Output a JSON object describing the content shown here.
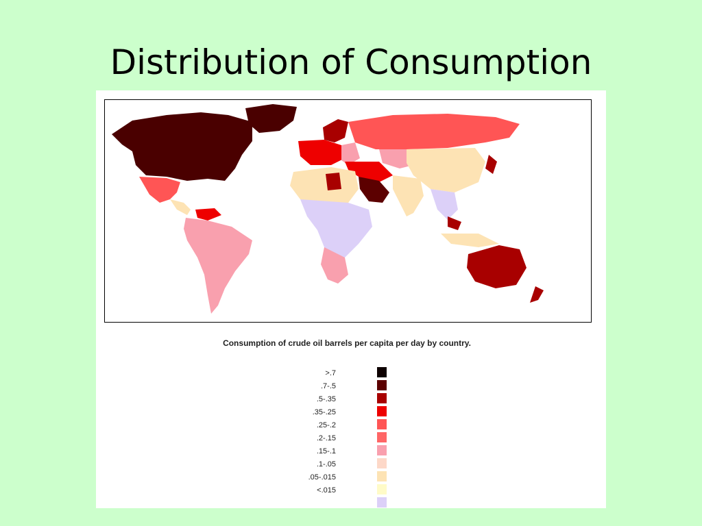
{
  "title": "Distribution of Consumption",
  "map": {
    "caption": "Consumption of crude oil barrels per capita per day by country."
  },
  "legend": [
    {
      "label": ">.7",
      "color": "#0d0000"
    },
    {
      "label": ".7-.5",
      "color": "#5c0000"
    },
    {
      "label": ".5-.35",
      "color": "#a80000"
    },
    {
      "label": ".35-.25",
      "color": "#ee0000"
    },
    {
      "label": ".25-.2",
      "color": "#ff5555"
    },
    {
      "label": ".2-.15",
      "color": "#ff6666"
    },
    {
      "label": ".15-.1",
      "color": "#f9a0ae"
    },
    {
      "label": ".1-.05",
      "color": "#fdd8c8"
    },
    {
      "label": ".05-.015",
      "color": "#fde3b4"
    },
    {
      "label": "<.015",
      "color": "#fffbc8"
    },
    {
      "label": "",
      "color": "#dcd0f8"
    }
  ]
}
